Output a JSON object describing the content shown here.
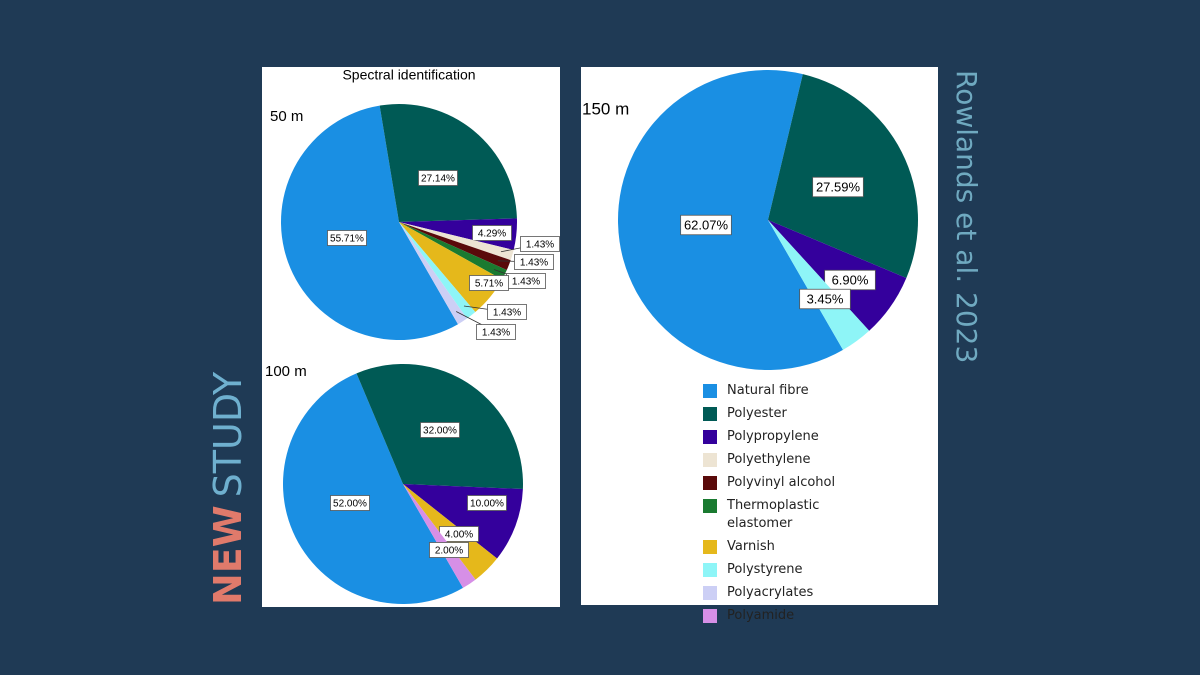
{
  "slide": {
    "new": "NEW",
    "study": "STUDY",
    "citation": "Rowlands et al. 2023"
  },
  "chart_data": [
    {
      "type": "pie",
      "title": "Spectral identification",
      "subtitle": "50 m",
      "categories": [
        "Natural fibre",
        "Polyester",
        "Polypropylene",
        "Polyethylene",
        "Polyvinyl alcohol",
        "Thermoplastic elastomer",
        "Varnish",
        "Polystyrene",
        "Polyacrylates"
      ],
      "values": [
        55.71,
        27.14,
        4.29,
        1.43,
        1.43,
        1.43,
        5.71,
        1.43,
        1.43
      ],
      "value_labels": [
        "55.71%",
        "27.14%",
        "4.29%",
        "1.43%",
        "1.43%",
        "1.43%",
        "5.71%",
        "1.43%",
        "1.43%"
      ],
      "colors": [
        "#1a8fe3",
        "#005a55",
        "#34009c",
        "#ede4d3",
        "#5a0a0a",
        "#1a7a30",
        "#e5b81b",
        "#8ef5f7",
        "#cccff5"
      ]
    },
    {
      "type": "pie",
      "subtitle": "100 m",
      "categories": [
        "Natural fibre",
        "Polyester",
        "Polypropylene",
        "Varnish",
        "Polyamide"
      ],
      "values": [
        52.0,
        32.0,
        10.0,
        4.0,
        2.0
      ],
      "value_labels": [
        "52.00%",
        "32.00%",
        "10.00%",
        "4.00%",
        "2.00%"
      ],
      "colors": [
        "#1a8fe3",
        "#005a55",
        "#34009c",
        "#e5b81b",
        "#d68fe6"
      ]
    },
    {
      "type": "pie",
      "subtitle": "150 m",
      "categories": [
        "Natural fibre",
        "Polyester",
        "Polypropylene",
        "Polystyrene"
      ],
      "values": [
        62.07,
        27.59,
        6.9,
        3.45
      ],
      "value_labels": [
        "62.07%",
        "27.59%",
        "6.90%",
        "3.45%"
      ],
      "colors": [
        "#1a8fe3",
        "#005a55",
        "#34009c",
        "#8ef5f7"
      ]
    }
  ],
  "legend": [
    {
      "name": "Natural fibre",
      "color": "#1a8fe3"
    },
    {
      "name": "Polyester",
      "color": "#005a55"
    },
    {
      "name": "Polypropylene",
      "color": "#34009c"
    },
    {
      "name": "Polyethylene",
      "color": "#ede4d3"
    },
    {
      "name": "Polyvinyl alcohol",
      "color": "#5a0a0a"
    },
    {
      "name": "Thermoplastic elastomer",
      "color": "#1a7a30"
    },
    {
      "name": "Varnish",
      "color": "#e5b81b"
    },
    {
      "name": "Polystyrene",
      "color": "#8ef5f7"
    },
    {
      "name": "Polyacrylates",
      "color": "#cccff5"
    },
    {
      "name": "Polyamide",
      "color": "#d68fe6"
    }
  ]
}
